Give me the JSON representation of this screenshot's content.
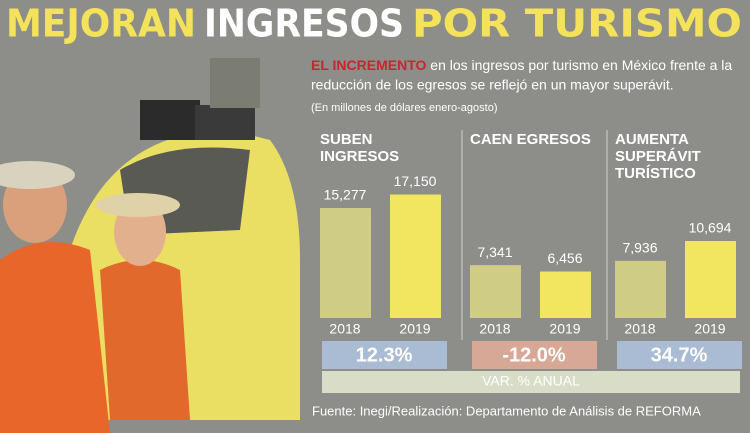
{
  "header": {
    "title_parts": [
      "MEJORAN",
      "INGRESOS",
      "POR TURISMO"
    ],
    "intro_lead": "EL INCREMENTO",
    "intro_lines": [
      " en los ingresos por turismo en México frente a la",
      "reducción de los egresos se reflejó en un mayor superávit."
    ],
    "note": "(En millones de dólares enero-agosto)"
  },
  "chart_data": [
    {
      "type": "bar",
      "title": [
        "SUBEN",
        "INGRESOS"
      ],
      "categories": [
        "2018",
        "2019"
      ],
      "values": [
        15277,
        17150
      ],
      "value_labels": [
        "15,277",
        "17,150"
      ],
      "colors": [
        "#cfcd85",
        "#f2e660"
      ],
      "ylim": [
        0,
        20000
      ],
      "change": "12.3%",
      "change_color": "#a9bcd4"
    },
    {
      "type": "bar",
      "title": [
        "CAEN EGRESOS"
      ],
      "categories": [
        "2018",
        "2019"
      ],
      "values": [
        7341,
        6456
      ],
      "value_labels": [
        "7,341",
        "6,456"
      ],
      "colors": [
        "#cfcd85",
        "#f2e660"
      ],
      "ylim": [
        0,
        20000
      ],
      "change": "-12.0%",
      "change_color": "#d8a897"
    },
    {
      "type": "bar",
      "title": [
        "AUMENTA",
        "SUPERÁVIT",
        "TURÍSTICO"
      ],
      "categories": [
        "2018",
        "2019"
      ],
      "values": [
        7936,
        10694
      ],
      "value_labels": [
        "7,936",
        "10,694"
      ],
      "colors": [
        "#cfcd85",
        "#f2e660"
      ],
      "ylim": [
        0,
        20000
      ],
      "change": "34.7%",
      "change_color": "#a9bcd4"
    }
  ],
  "footer": {
    "band_label": "VAR. % ANUAL",
    "source": "Fuente: Inegi/Realización: Departamento de Análisis de REFORMA"
  }
}
